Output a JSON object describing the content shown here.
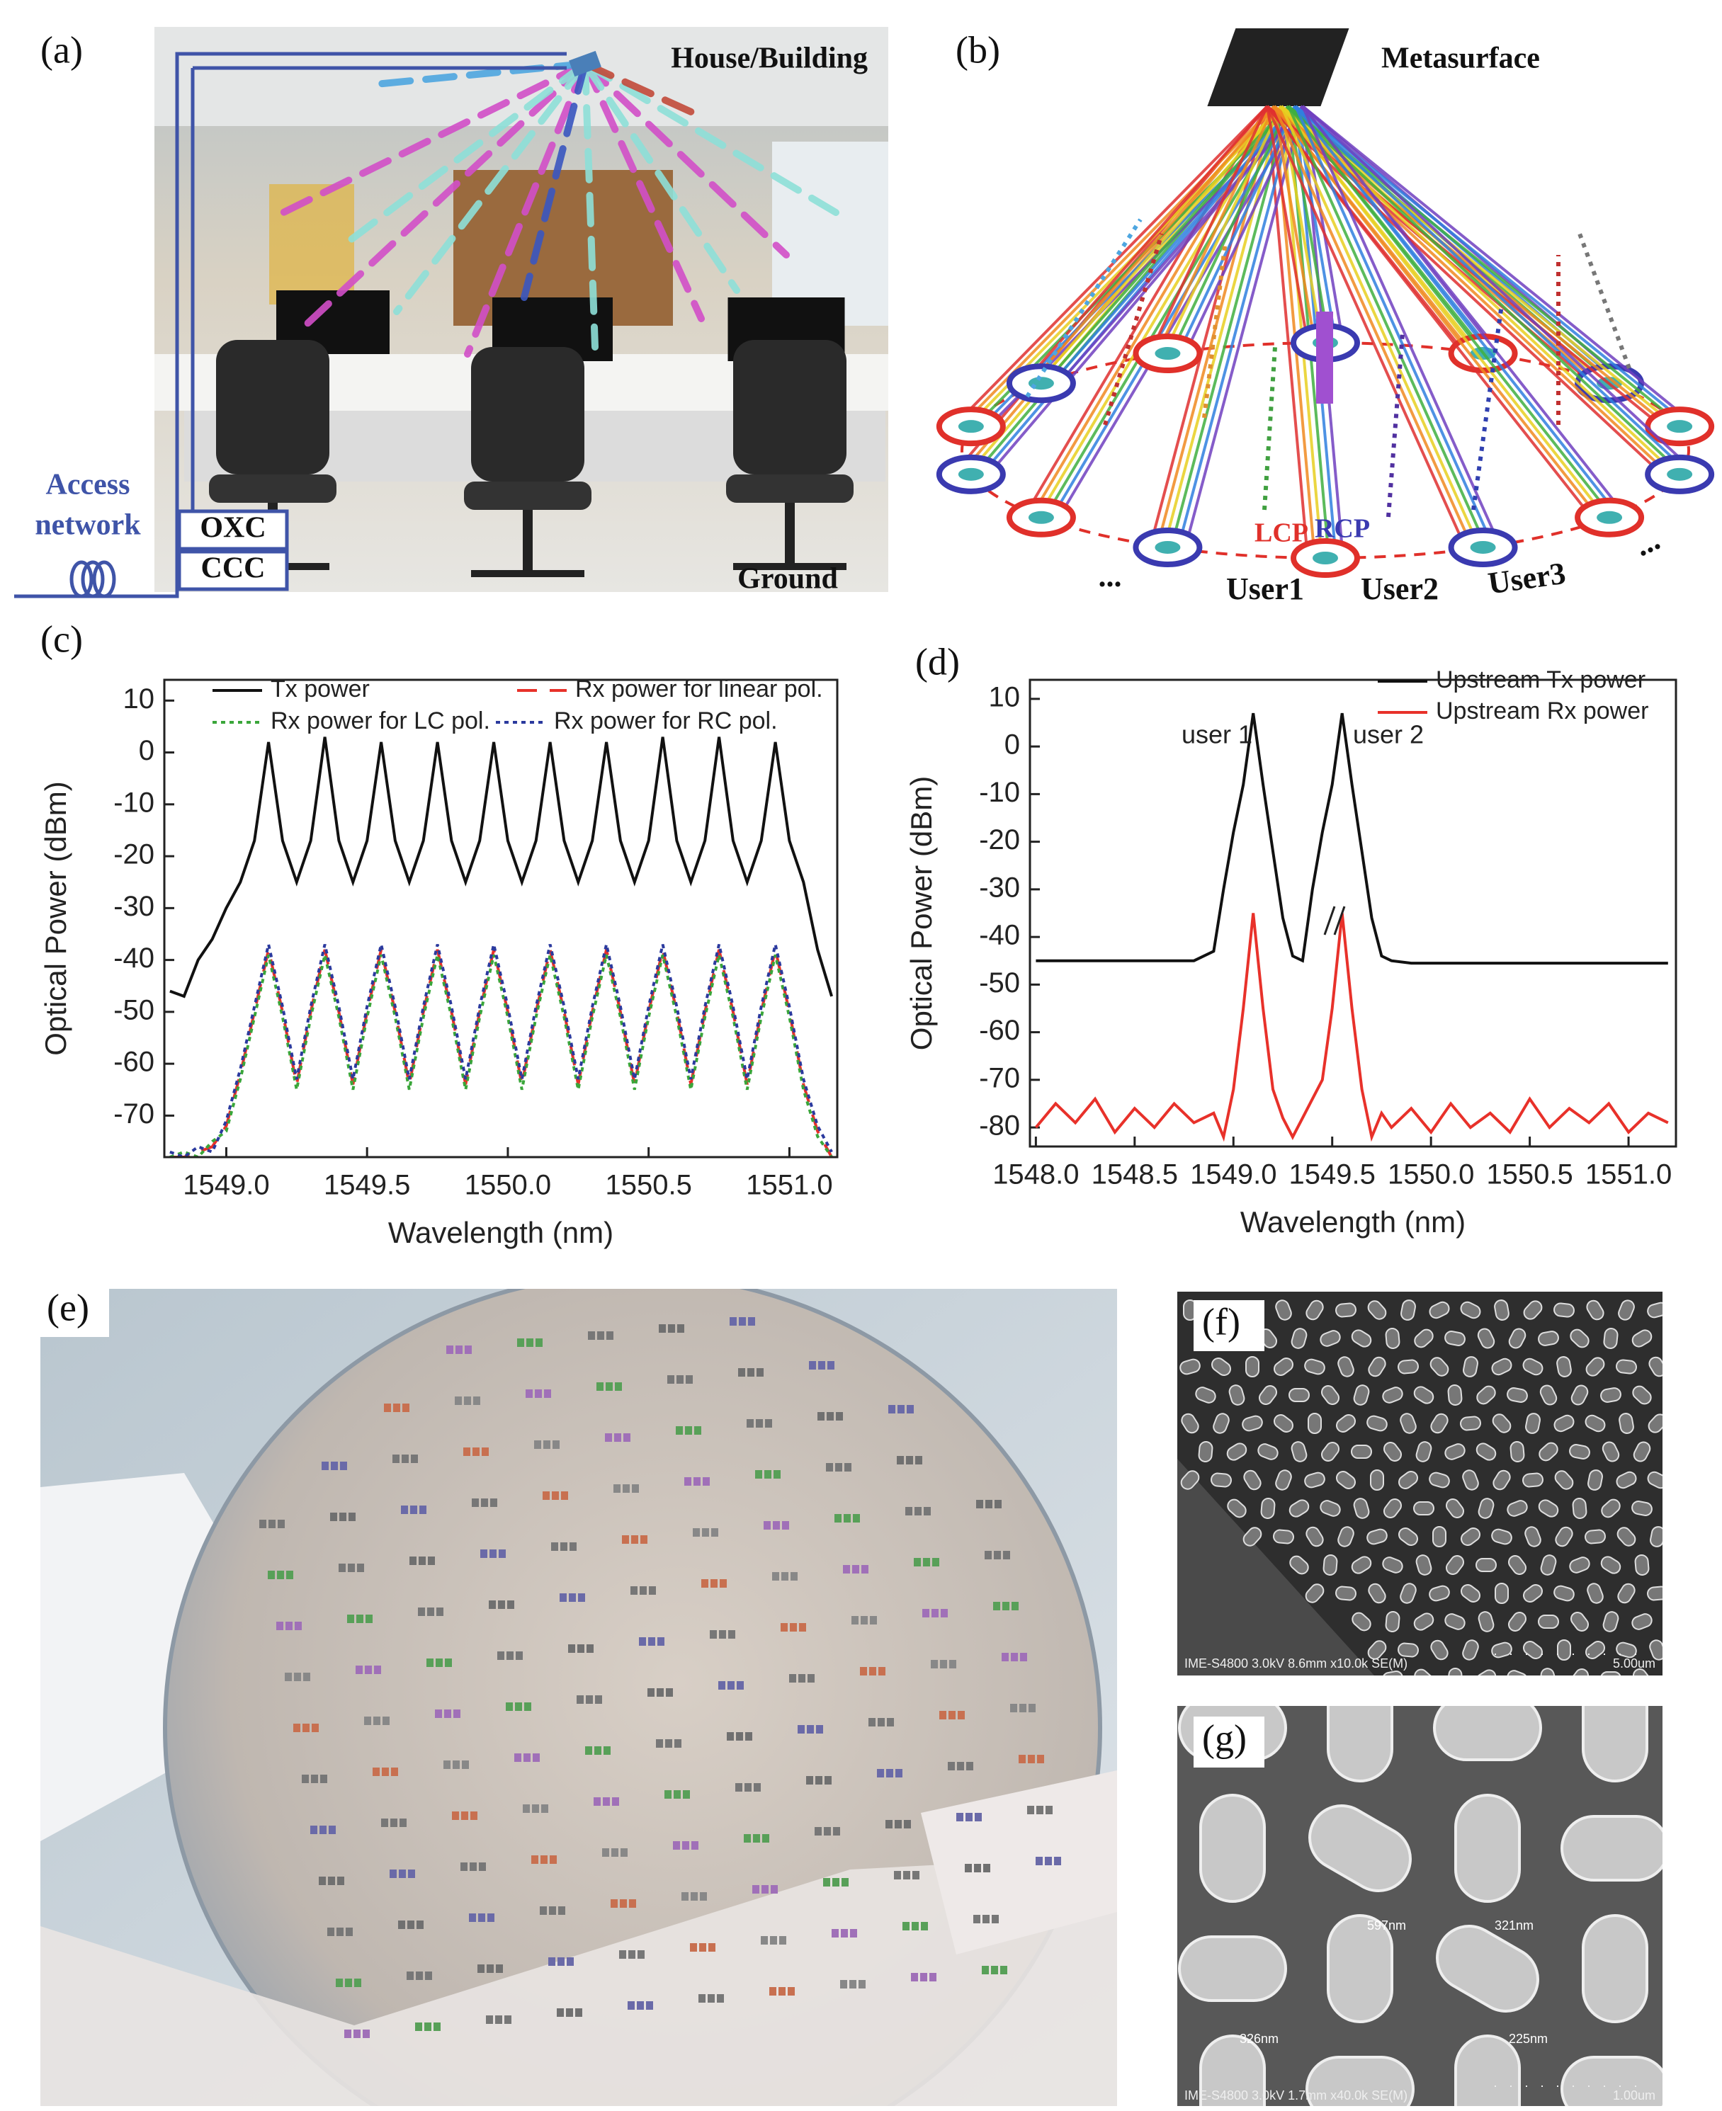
{
  "panel_labels": [
    "(a)",
    "(b)",
    "(c)",
    "(d)",
    "(e)",
    "(f)",
    "(g)"
  ],
  "panel_a": {
    "building": "House/Building",
    "access": [
      "Access",
      "network"
    ],
    "oxc": "OXC",
    "ccc": "CCC",
    "ground": "Ground"
  },
  "panel_b": {
    "metasurface": "Metasurface",
    "lcp": "LCP",
    "rcp": "RCP",
    "users": [
      "User1",
      "User2",
      "User3"
    ],
    "ellipsis": [
      "...",
      "..."
    ]
  },
  "chart_data": [
    {
      "type": "line",
      "xlabel": "Wavelength (nm)",
      "ylabel": "Optical Power (dBm)",
      "x": [
        1548.8,
        1548.85,
        1548.9,
        1548.95,
        1549,
        1549.05,
        1549.1,
        1549.15,
        1549.2,
        1549.25,
        1549.3,
        1549.35,
        1549.4,
        1549.45,
        1549.5,
        1549.55,
        1549.6,
        1549.65,
        1549.7,
        1549.75,
        1549.8,
        1549.85,
        1549.9,
        1549.95,
        1550,
        1550.05,
        1550.1,
        1550.15,
        1550.2,
        1550.25,
        1550.3,
        1550.35,
        1550.4,
        1550.45,
        1550.5,
        1550.55,
        1550.6,
        1550.65,
        1550.7,
        1550.75,
        1550.8,
        1550.85,
        1550.9,
        1550.95,
        1551,
        1551.05,
        1551.1,
        1551.15
      ],
      "series": [
        {
          "name": "Tx power",
          "color": "#111111",
          "style": "solid",
          "values": [
            -46,
            -47,
            -40,
            -36,
            -30,
            -25,
            -17,
            2,
            -17,
            -25,
            -17,
            3,
            -17,
            -25,
            -17,
            2,
            -17,
            -25,
            -17,
            2,
            -17,
            -25,
            -17,
            2,
            -17,
            -25,
            -17,
            2,
            -17,
            -25,
            -17,
            2,
            -17,
            -25,
            -17,
            3,
            -17,
            -25,
            -17,
            3,
            -17,
            -25,
            -17,
            2,
            -17,
            -25,
            -38,
            -47
          ]
        },
        {
          "name": "Rx power for linear pol.",
          "color": "#e8312a",
          "style": "dashed",
          "values": [
            -78,
            -78,
            -77,
            -76,
            -72,
            -62,
            -50,
            -38,
            -50,
            -64,
            -50,
            -38,
            -50,
            -64,
            -50,
            -38,
            -50,
            -64,
            -50,
            -38,
            -50,
            -64,
            -50,
            -38,
            -50,
            -64,
            -50,
            -38,
            -50,
            -64,
            -50,
            -38,
            -50,
            -64,
            -50,
            -38,
            -50,
            -64,
            -50,
            -38,
            -50,
            -64,
            -50,
            -38,
            -50,
            -64,
            -73,
            -78
          ]
        },
        {
          "name": "Rx power for LC pol.",
          "color": "#3aa63a",
          "style": "dotted",
          "values": [
            -78,
            -77,
            -78,
            -75,
            -73,
            -63,
            -51,
            -39,
            -51,
            -65,
            -51,
            -39,
            -51,
            -65,
            -51,
            -39,
            -51,
            -65,
            -51,
            -39,
            -51,
            -65,
            -51,
            -39,
            -51,
            -65,
            -51,
            -39,
            -51,
            -65,
            -51,
            -39,
            -51,
            -65,
            -51,
            -39,
            -51,
            -65,
            -51,
            -39,
            -51,
            -65,
            -51,
            -39,
            -51,
            -65,
            -74,
            -78
          ]
        },
        {
          "name": "Rx power for RC pol.",
          "color": "#2b3a9e",
          "style": "dotted",
          "values": [
            -77,
            -78,
            -76,
            -77,
            -71,
            -61,
            -49,
            -37,
            -49,
            -63,
            -49,
            -37,
            -49,
            -63,
            -49,
            -37,
            -49,
            -63,
            -49,
            -37,
            -49,
            -63,
            -49,
            -37,
            -49,
            -63,
            -49,
            -37,
            -49,
            -63,
            -49,
            -37,
            -49,
            -63,
            -49,
            -37,
            -49,
            -63,
            -49,
            -37,
            -49,
            -63,
            -49,
            -37,
            -49,
            -63,
            -72,
            -77
          ]
        }
      ],
      "xlim": [
        1548.78,
        1551.17
      ],
      "ylim": [
        -78,
        14
      ],
      "xticks": [
        {
          "value": 1549,
          "label": "1549.0"
        },
        {
          "value": 1549.5,
          "label": "1549.5"
        },
        {
          "value": 1550,
          "label": "1550.0"
        },
        {
          "value": 1550.5,
          "label": "1550.5"
        },
        {
          "value": 1551,
          "label": "1551.0"
        }
      ],
      "yticks": [
        10,
        0,
        -10,
        -20,
        -30,
        -40,
        -50,
        -60,
        -70
      ]
    },
    {
      "type": "line",
      "xlabel": "Wavelength (nm)",
      "ylabel": "Optical Power (dBm)",
      "annotations": [
        "user 1",
        "user 2"
      ],
      "x": [
        1548,
        1548.1,
        1548.2,
        1548.3,
        1548.4,
        1548.5,
        1548.6,
        1548.7,
        1548.8,
        1548.9,
        1548.95,
        1549,
        1549.05,
        1549.1,
        1549.15,
        1549.2,
        1549.25,
        1549.3,
        1549.35,
        1549.4,
        1549.45,
        1549.5,
        1549.55,
        1549.6,
        1549.65,
        1549.7,
        1549.75,
        1549.8,
        1549.9,
        1550,
        1550.1,
        1550.2,
        1550.3,
        1550.4,
        1550.5,
        1550.6,
        1550.7,
        1550.8,
        1550.9,
        1551,
        1551.1,
        1551.2
      ],
      "series": [
        {
          "name": "Upstream Tx power",
          "color": "#111111",
          "style": "solid",
          "values": [
            -45,
            -45,
            -45,
            -45,
            -45,
            -45,
            -45,
            -45,
            -45,
            -43,
            -30,
            -18,
            -8,
            7,
            -8,
            -22,
            -36,
            -44,
            -45,
            -30,
            -18,
            -8,
            7,
            -8,
            -22,
            -36,
            -44,
            -45,
            -45.5,
            -45.5,
            -45.5,
            -45.5,
            -45.5,
            -45.5,
            -45.5,
            -45.5,
            -45.5,
            -45.5,
            -45.5,
            -45.5,
            -45.5,
            -45.5
          ]
        },
        {
          "name": "Upstream Rx power",
          "color": "#e8312a",
          "style": "solid",
          "values": [
            -80,
            -75,
            -79,
            -74,
            -81,
            -76,
            -80,
            -75,
            -79,
            -77,
            -82,
            -72,
            -55,
            -35,
            -55,
            -72,
            -78,
            -82,
            -78,
            -74,
            -70,
            -55,
            -35,
            -55,
            -72,
            -82,
            -77,
            -80,
            -76,
            -81,
            -75,
            -80,
            -77,
            -81,
            -74,
            -80,
            -76,
            -79,
            -75,
            -81,
            -77,
            -79
          ]
        }
      ],
      "xlim": [
        1547.97,
        1551.24
      ],
      "ylim": [
        -84,
        14
      ],
      "xticks": [
        {
          "value": 1548,
          "label": "1548.0"
        },
        {
          "value": 1548.5,
          "label": "1548.5"
        },
        {
          "value": 1549,
          "label": "1549.0"
        },
        {
          "value": 1549.5,
          "label": "1549.5"
        },
        {
          "value": 1550,
          "label": "1550.0"
        },
        {
          "value": 1550.5,
          "label": "1550.5"
        },
        {
          "value": 1551,
          "label": "1551.0"
        }
      ],
      "yticks": [
        10,
        0,
        -10,
        -20,
        -30,
        -40,
        -50,
        -60,
        -70,
        -80
      ]
    }
  ],
  "panel_f": {
    "footer": "IME-S4800 3.0kV 8.6mm x10.0k SE(M)",
    "scale": "5.00um"
  },
  "panel_g": {
    "footer": "IME-S4800 3.0kV 1.7mm x40.0k SE(M)",
    "scale": "1.00um",
    "measurements": [
      "597nm",
      "321nm",
      "326nm",
      "225nm"
    ]
  }
}
